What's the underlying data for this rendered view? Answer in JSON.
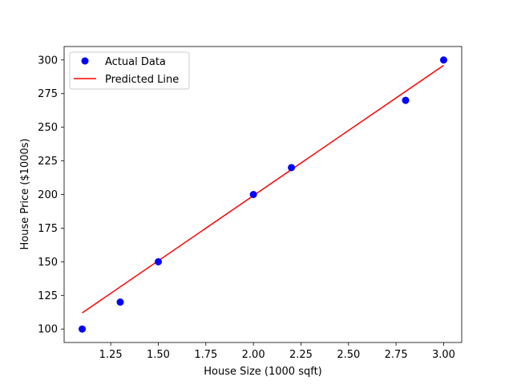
{
  "chart_data": {
    "type": "scatter",
    "title": "",
    "xlabel": "House Size (1000 sqft)",
    "ylabel": "House Price ($1000s)",
    "xlim": [
      1.005,
      3.095
    ],
    "ylim": [
      90,
      310
    ],
    "xticks": [
      1.25,
      1.5,
      1.75,
      2.0,
      2.25,
      2.5,
      2.75,
      3.0
    ],
    "xtick_labels": [
      "1.25",
      "1.50",
      "1.75",
      "2.00",
      "2.25",
      "2.50",
      "2.75",
      "3.00"
    ],
    "yticks": [
      100,
      125,
      150,
      175,
      200,
      225,
      250,
      275,
      300
    ],
    "ytick_labels": [
      "100",
      "125",
      "150",
      "175",
      "200",
      "225",
      "250",
      "275",
      "300"
    ],
    "grid": false,
    "legend_position": "top-left",
    "series": [
      {
        "name": "Actual Data",
        "kind": "scatter",
        "color": "#0000ff",
        "x": [
          1.1,
          1.3,
          1.5,
          2.0,
          2.2,
          2.8,
          3.0
        ],
        "y": [
          100,
          120,
          150,
          200,
          220,
          270,
          300
        ]
      },
      {
        "name": "Predicted Line",
        "kind": "line",
        "color": "#ff0000",
        "x": [
          1.1,
          3.0
        ],
        "y": [
          112,
          296
        ]
      }
    ]
  }
}
